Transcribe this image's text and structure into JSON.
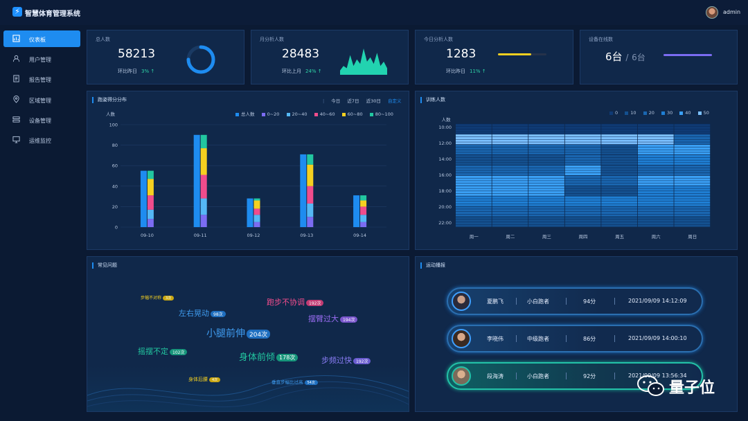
{
  "app": {
    "title": "智慧体育管理系统",
    "user": "admin"
  },
  "sidebar": {
    "items": [
      {
        "label": "仪表板",
        "icon": "chart-icon",
        "active": true
      },
      {
        "label": "用户管理",
        "icon": "user-icon",
        "active": false
      },
      {
        "label": "报告管理",
        "icon": "report-icon",
        "active": false
      },
      {
        "label": "区域管理",
        "icon": "location-icon",
        "active": false
      },
      {
        "label": "设备管理",
        "icon": "device-icon",
        "active": false
      },
      {
        "label": "运维监控",
        "icon": "monitor-icon",
        "active": false
      }
    ]
  },
  "stats": {
    "total": {
      "label": "总人数",
      "value": "58213",
      "compare": "环比昨日",
      "pct": "3%",
      "ring_fraction": 0.75
    },
    "month": {
      "label": "月分析人数",
      "value": "28483",
      "compare": "环比上月",
      "pct": "24%",
      "sparkline": [
        2,
        4,
        3,
        9,
        4,
        7,
        5,
        12,
        6,
        8,
        5,
        10,
        4,
        6,
        3
      ]
    },
    "today": {
      "label": "今日分析人数",
      "value": "1283",
      "compare": "环比昨日",
      "pct": "11%",
      "bar_fraction": 0.68
    },
    "devices": {
      "label": "设备在线数",
      "online": "6台",
      "sep": "/",
      "total": "6台",
      "bar_fraction": 1.0
    }
  },
  "score_panel": {
    "title": "跑姿得分分布",
    "tabs": [
      "今日",
      "近7日",
      "近30日",
      "自定义"
    ],
    "active_tab": "自定义"
  },
  "train_panel": {
    "title": "训练人数"
  },
  "faq_panel": {
    "title": "常见问题",
    "words": [
      {
        "text": "步幅不对称",
        "count": "3次",
        "color": "#f5d020"
      },
      {
        "text": "左右晃动",
        "count": "98次",
        "color": "#3f9cf0"
      },
      {
        "text": "跑步不协调",
        "count": "192次",
        "color": "#f04c8c"
      },
      {
        "text": "摆臂过大",
        "count": "194次",
        "color": "#9a6cf2"
      },
      {
        "text": "小腿前伸",
        "count": "204次",
        "color": "#3f9cf0"
      },
      {
        "text": "摇摆不定",
        "count": "102次",
        "color": "#22c7a0"
      },
      {
        "text": "身体前倾",
        "count": "178次",
        "color": "#22c7a0"
      },
      {
        "text": "步频过快",
        "count": "192次",
        "color": "#8a7cf5"
      },
      {
        "text": "身体后腰",
        "count": "4次",
        "color": "#f5d020"
      },
      {
        "text": "垂直步幅比过高",
        "count": "54次",
        "color": "#3f9cf0"
      }
    ]
  },
  "broadcast_panel": {
    "title": "运动播报",
    "rows": [
      {
        "name": "夏鹏飞",
        "level": "小白跑者",
        "score": "94分",
        "time": "2021/09/09   14:12:09"
      },
      {
        "name": "李晓伟",
        "level": "中级跑者",
        "score": "86分",
        "time": "2021/09/09   14:00:10"
      },
      {
        "name": "段海涛",
        "level": "小白跑者",
        "score": "92分",
        "time": "2021/09/09   13:56:34"
      }
    ]
  },
  "watermark": {
    "text": "量子位"
  },
  "chart_data": [
    {
      "type": "bar",
      "title": "跑姿得分分布",
      "ylabel": "人数",
      "ylim": [
        0,
        100
      ],
      "yticks": [
        0,
        20,
        40,
        60,
        80,
        100
      ],
      "categories": [
        "09-10",
        "09-11",
        "09-12",
        "09-13",
        "09-14"
      ],
      "series": [
        {
          "name": "总人数",
          "color": "#1e8cf0",
          "stack": "total",
          "values": [
            55,
            90,
            28,
            71,
            31
          ]
        },
        {
          "name": "0~20",
          "color": "#7b6cf2",
          "stack": "parts",
          "values": [
            8,
            12,
            5,
            10,
            5
          ]
        },
        {
          "name": "20~40",
          "color": "#55b8f5",
          "stack": "parts",
          "values": [
            9,
            16,
            7,
            13,
            7
          ]
        },
        {
          "name": "40~60",
          "color": "#f04c8c",
          "stack": "parts",
          "values": [
            14,
            23,
            6,
            17,
            8
          ]
        },
        {
          "name": "60~80",
          "color": "#f5d020",
          "stack": "parts",
          "values": [
            16,
            26,
            8,
            21,
            6
          ]
        },
        {
          "name": "80~100",
          "color": "#22c7a0",
          "stack": "parts",
          "values": [
            8,
            13,
            2,
            10,
            5
          ]
        }
      ]
    },
    {
      "type": "heatmap",
      "title": "训练人数",
      "ylabel": "人数",
      "x": [
        "周一",
        "周二",
        "周三",
        "周四",
        "周五",
        "周六",
        "周日"
      ],
      "y_ticks": [
        "10:00",
        "12:00",
        "14:00",
        "16:00",
        "18:00",
        "20:00",
        "22:00"
      ],
      "legend": [
        {
          "name": "0",
          "color": "#0f3a74"
        },
        {
          "name": "10",
          "color": "#14508f"
        },
        {
          "name": "20",
          "color": "#1a66b0"
        },
        {
          "name": "30",
          "color": "#1f7fd4"
        },
        {
          "name": "40",
          "color": "#3aa0f5"
        },
        {
          "name": "50",
          "color": "#7cc0ff"
        }
      ],
      "bands": [
        [
          0,
          0,
          0,
          0,
          0,
          0,
          0
        ],
        [
          5,
          5,
          5,
          5,
          5,
          5,
          2
        ],
        [
          2,
          2,
          2,
          2,
          1,
          4,
          4
        ],
        [
          1,
          1,
          1,
          2,
          1,
          3,
          3
        ],
        [
          2,
          2,
          2,
          4,
          1,
          2,
          2
        ],
        [
          4,
          4,
          4,
          2,
          2,
          4,
          4
        ],
        [
          4,
          4,
          4,
          1,
          1,
          3,
          3
        ],
        [
          3,
          3,
          3,
          3,
          3,
          3,
          3
        ],
        [
          2,
          2,
          2,
          2,
          2,
          2,
          2
        ],
        [
          1,
          1,
          1,
          1,
          1,
          1,
          1
        ]
      ]
    }
  ]
}
